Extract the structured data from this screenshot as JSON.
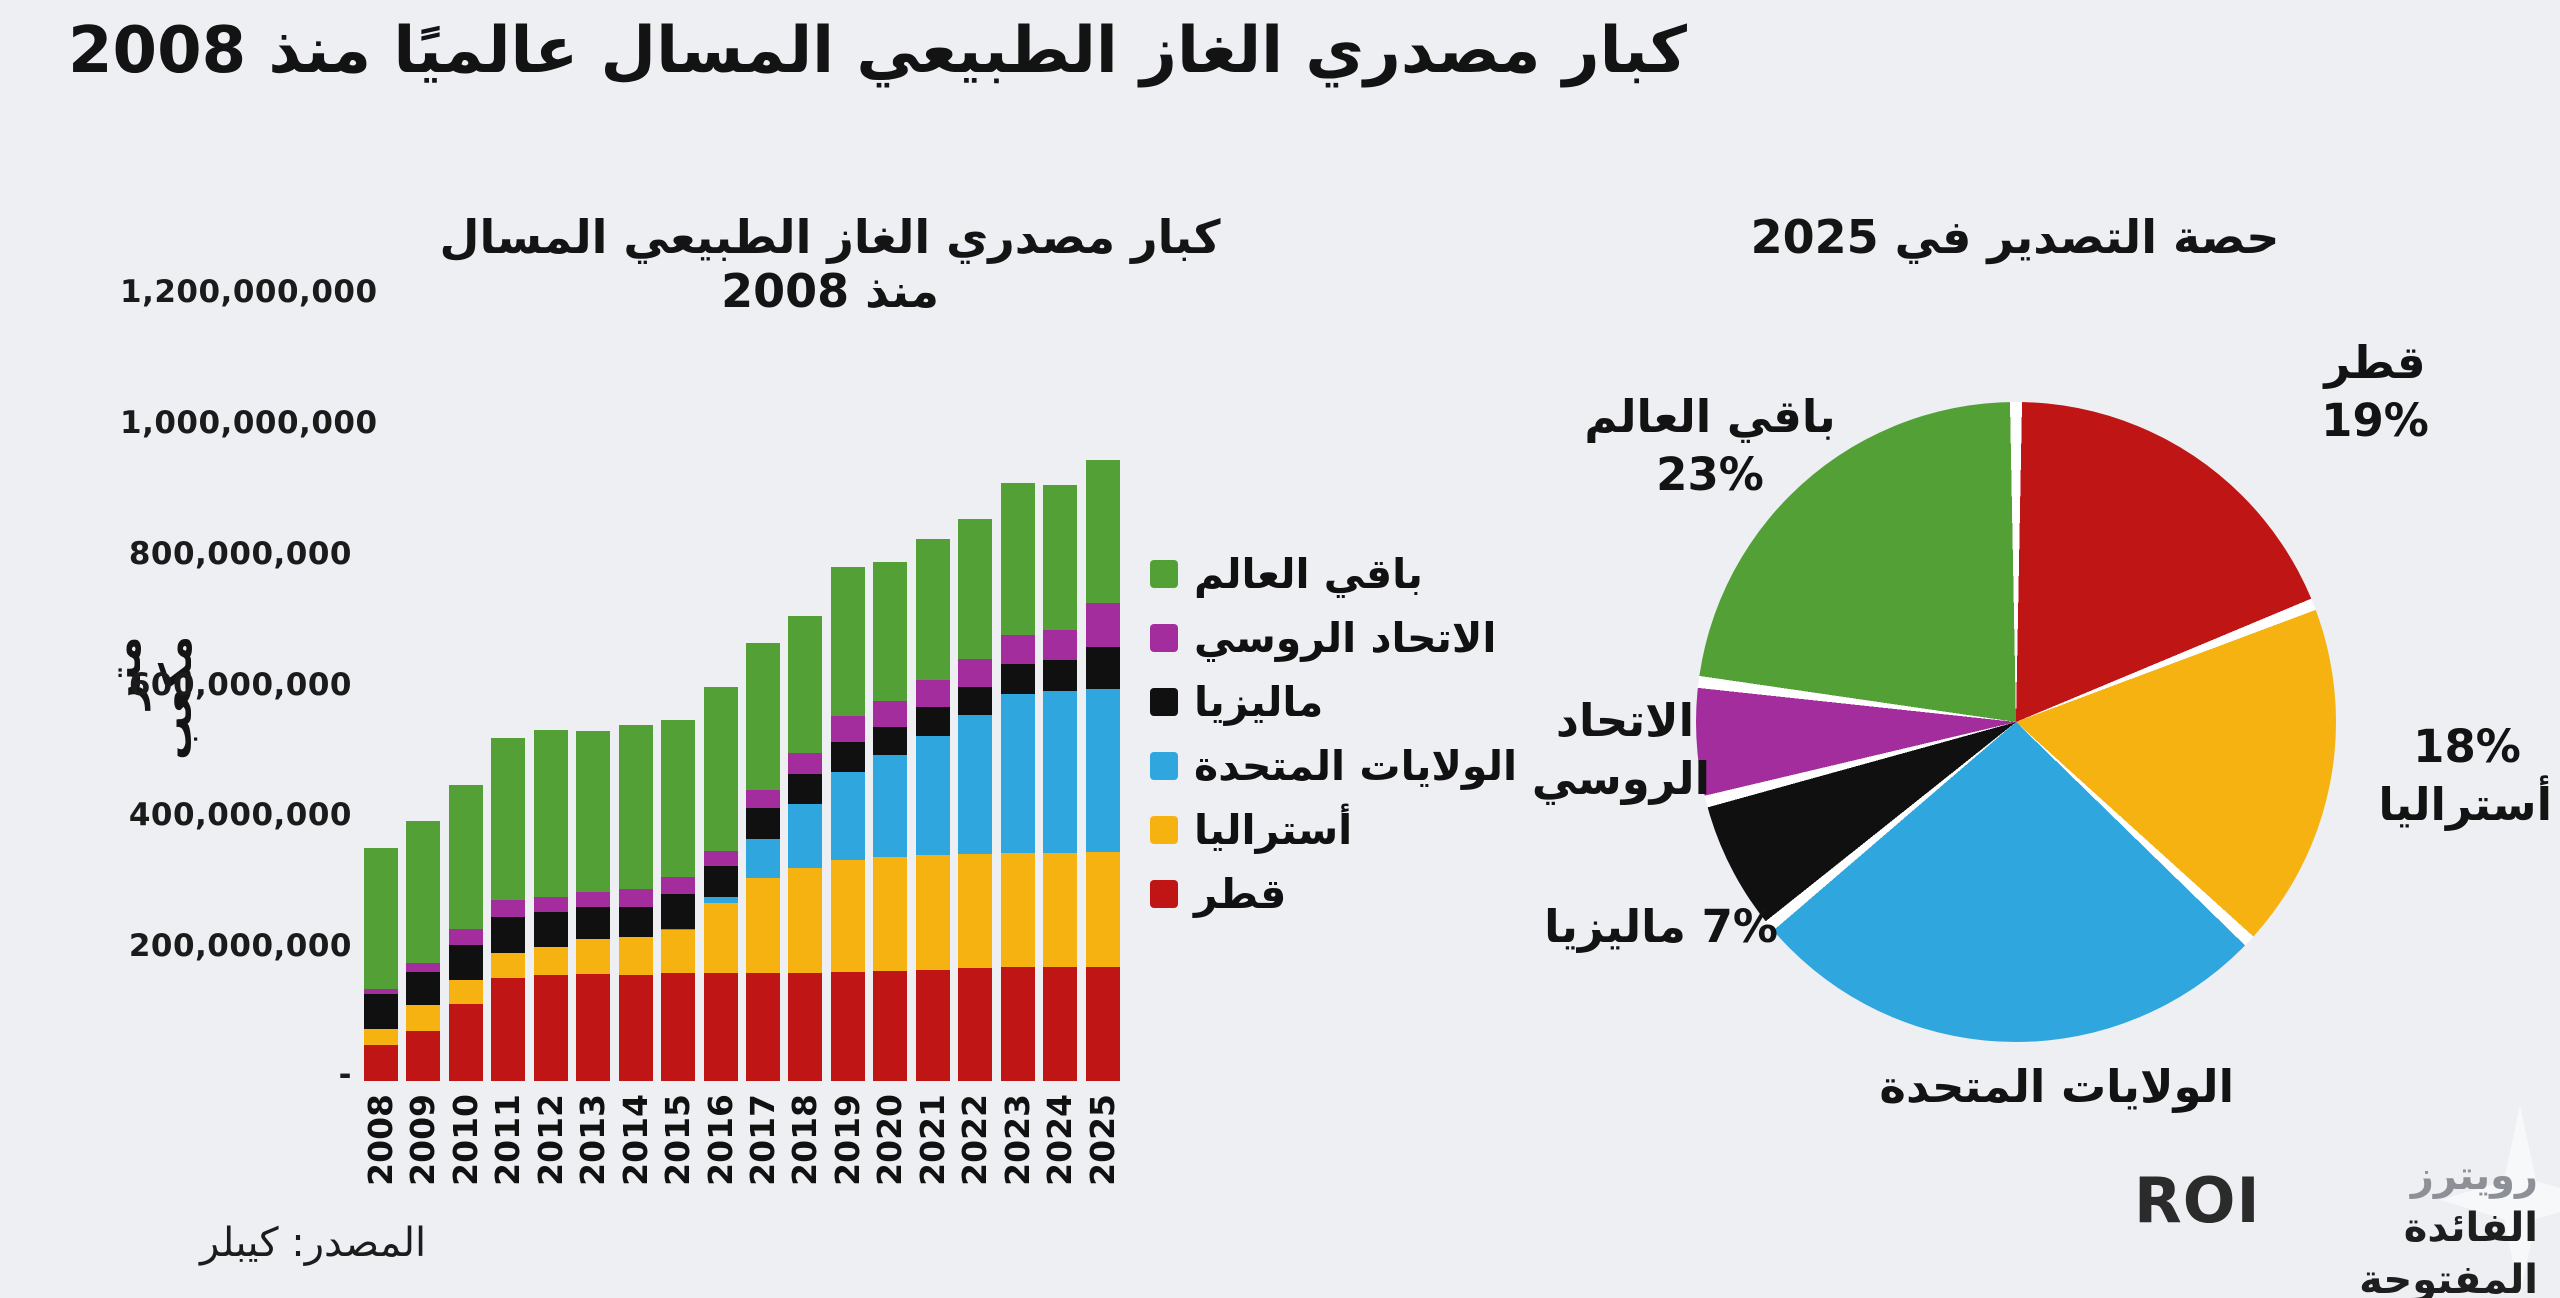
{
  "header": {
    "title": "كبار مصدري الغاز الطبيعي المسال عالميًا منذ 2008"
  },
  "bar_section": {
    "title": "كبار مصدري الغاز الطبيعي المسال منذ 2008",
    "y_axis_title": "متر مكعب",
    "y_tick_labels": [
      "1,200,000,000",
      "1,000,000,000",
      "800,000,000",
      "600,000,000",
      "400,000,000",
      "200,000,000"
    ],
    "zero_tick_label": "-"
  },
  "pie_section": {
    "title": "حصة التصدير في 2025",
    "labels": {
      "qatar": {
        "name": "قطر",
        "pct": "19%"
      },
      "rest_of_world": {
        "name": "باقي العالم",
        "pct": "23%"
      },
      "australia": {
        "name": "أستراليا",
        "pct": "18%"
      },
      "russia_line1": "الاتحاد",
      "russia_line2": "الروسي",
      "malaysia": {
        "name": "ماليزيا",
        "pct": "7%"
      },
      "united_states": {
        "name": "الولايات المتحدة"
      }
    }
  },
  "footer": {
    "source": "المصدر: كيبلر",
    "logo_text": "ROI",
    "logo_ar_line1_gray": "رويترز",
    "logo_ar_line1_rest": " الفائدة",
    "logo_ar_line2": "المفتوحة"
  },
  "colors": {
    "background": "#edeff3",
    "qatar": "#c01515",
    "australia": "#f5b211",
    "united_states": "#2fa6de",
    "malaysia": "#101010",
    "russia": "#a42d9e",
    "rest_of_world": "#53a136",
    "separator": "#ffffff",
    "text": "#141414"
  },
  "chart_data": [
    {
      "type": "bar",
      "stacked": true,
      "title": "كبار مصدري الغاز الطبيعي المسال منذ 2008",
      "xlabel": "",
      "ylabel": "متر مكعب",
      "unit": "cubic meters",
      "ylim": [
        0,
        1200000000
      ],
      "value_scale_note": "values below are in millions of cubic meters, estimated from bar heights",
      "categories": [
        2008,
        2009,
        2010,
        2011,
        2012,
        2013,
        2014,
        2015,
        2016,
        2017,
        2018,
        2019,
        2020,
        2021,
        2022,
        2023,
        2024,
        2025
      ],
      "series": [
        {
          "key": "qatar",
          "name": "قطر",
          "color": "#c01515",
          "values": [
            55,
            76,
            118,
            157,
            162,
            164,
            162,
            165,
            165,
            165,
            165,
            166,
            168,
            170,
            172,
            175,
            175,
            175
          ]
        },
        {
          "key": "australia",
          "name": "أستراليا",
          "color": "#f5b211",
          "values": [
            24,
            40,
            36,
            39,
            43,
            53,
            58,
            66,
            107,
            145,
            160,
            172,
            175,
            176,
            175,
            174,
            173,
            175
          ]
        },
        {
          "key": "united_states",
          "name": "الولايات المتحدة",
          "color": "#2fa6de",
          "values": [
            0,
            0,
            0,
            0,
            0,
            0,
            0,
            2,
            10,
            60,
            98,
            135,
            155,
            182,
            212,
            242,
            248,
            250
          ]
        },
        {
          "key": "malaysia",
          "name": "ماليزيا",
          "color": "#101010",
          "values": [
            54,
            51,
            54,
            55,
            54,
            49,
            46,
            53,
            46,
            47,
            46,
            45,
            43,
            43,
            44,
            46,
            48,
            63
          ]
        },
        {
          "key": "russia",
          "name": "الاتحاد الروسي",
          "color": "#a42d9e",
          "values": [
            8,
            13,
            24,
            26,
            23,
            23,
            27,
            26,
            24,
            28,
            32,
            40,
            40,
            42,
            42,
            45,
            46,
            67
          ]
        },
        {
          "key": "rest_of_world",
          "name": "باقي العالم",
          "color": "#53a136",
          "values": [
            215,
            217,
            220,
            247,
            255,
            246,
            251,
            240,
            250,
            225,
            210,
            228,
            213,
            216,
            214,
            232,
            221,
            220
          ]
        }
      ],
      "legend_position": "right",
      "grid": false
    },
    {
      "type": "pie",
      "title": "حصة التصدير في 2025",
      "slices": [
        {
          "key": "qatar",
          "label": "قطر",
          "pct": 19,
          "color": "#c01515"
        },
        {
          "key": "australia",
          "label": "أستراليا",
          "pct": 18,
          "color": "#f5b211"
        },
        {
          "key": "united_states",
          "label": "الولايات المتحدة",
          "pct": 27,
          "color": "#2fa6de"
        },
        {
          "key": "malaysia",
          "label": "ماليزيا",
          "pct": 7,
          "color": "#101010"
        },
        {
          "key": "russia",
          "label": "الاتحاد الروسي",
          "pct": 6,
          "color": "#a42d9e"
        },
        {
          "key": "rest_of_world",
          "label": "باقي العالم",
          "pct": 23,
          "color": "#53a136"
        }
      ],
      "start_angle_deg": 0,
      "direction": "clockwise"
    }
  ]
}
